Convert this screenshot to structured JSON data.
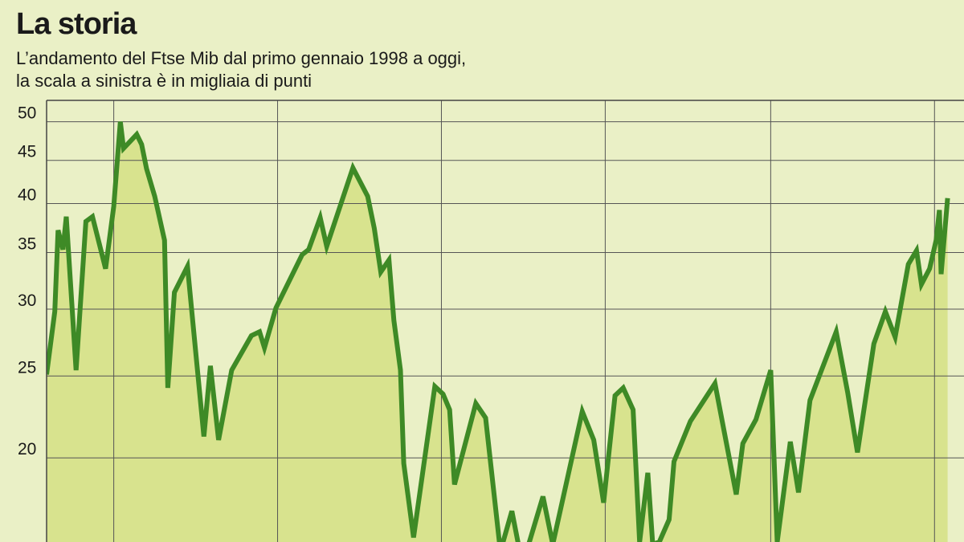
{
  "chart_data": {
    "type": "line",
    "title": "La storia",
    "subtitle": [
      "L’andamento del Ftse Mib dal primo gennaio 1998 a oggi,",
      "la scala a sinistra è in migliaia di punti"
    ],
    "x": [
      0,
      0.5,
      0.7,
      1.0,
      1.2,
      1.8,
      2.4,
      2.8,
      3.6,
      4.1,
      4.5,
      4.7,
      5.5,
      5.8,
      6.1,
      6.6,
      7.2,
      7.4,
      7.8,
      8.6,
      9.1,
      9.6,
      10.0,
      10.5,
      11.3,
      12.5,
      13.0,
      13.3,
      14.0,
      15.6,
      16.0,
      16.7,
      17.1,
      18.7,
      19.6,
      20.0,
      20.4,
      20.9,
      21.2,
      21.6,
      21.8,
      22.4,
      23.7,
      24.2,
      24.6,
      24.9,
      26.2,
      26.8,
      27.7,
      28.4,
      28.8,
      29.3,
      30.3,
      30.9,
      32.7,
      33.4,
      34.0,
      34.7,
      35.2,
      35.8,
      36.2,
      36.7,
      37.0,
      37.4,
      38.0,
      38.3,
      39.3,
      40.8,
      42.1,
      42.5,
      43.3,
      44.2,
      44.6,
      45.4,
      45.9,
      46.6,
      48.2,
      48.9,
      49.5,
      50.5,
      51.2,
      51.8,
      52.6,
      53.1,
      53.4,
      53.9,
      54.3,
      54.5,
      54.6,
      55.0
    ],
    "values": [
      25.1,
      29.8,
      37.2,
      35.3,
      38.6,
      25.4,
      38.1,
      38.6,
      33.5,
      39.7,
      50.0,
      46.5,
      48.3,
      47.0,
      44.0,
      40.8,
      36.2,
      24.2,
      31.4,
      33.7,
      26.7,
      21.2,
      25.7,
      21.0,
      25.4,
      27.9,
      28.2,
      27.0,
      30.1,
      34.8,
      35.3,
      38.5,
      35.6,
      44.1,
      40.8,
      37.4,
      33.2,
      34.3,
      29.1,
      25.4,
      19.7,
      16.1,
      24.3,
      23.8,
      22.8,
      18.6,
      23.2,
      22.3,
      15.5,
      17.3,
      15.8,
      15.5,
      18.0,
      15.8,
      22.7,
      21.0,
      17.7,
      23.7,
      24.2,
      22.8,
      15.9,
      19.2,
      15.8,
      15.9,
      16.9,
      19.8,
      22.1,
      24.5,
      18.1,
      20.8,
      22.2,
      25.4,
      15.9,
      20.9,
      18.2,
      23.4,
      28.2,
      23.9,
      20.3,
      27.3,
      29.8,
      27.8,
      33.9,
      35.2,
      32.1,
      33.5,
      36.2,
      39.3,
      33.0,
      40.6
    ],
    "color": "#3e8a26",
    "fill": "#d8e38e",
    "background": "#eaf0c6",
    "xlim": [
      0,
      56
    ],
    "xticks": [
      4.1,
      14.1,
      24.1,
      34.1,
      44.2,
      54.2
    ],
    "ylim": [
      15.9,
      53
    ],
    "yticks": [
      20,
      25,
      30,
      35,
      40,
      45,
      50
    ],
    "log_y": true,
    "grid": true
  }
}
